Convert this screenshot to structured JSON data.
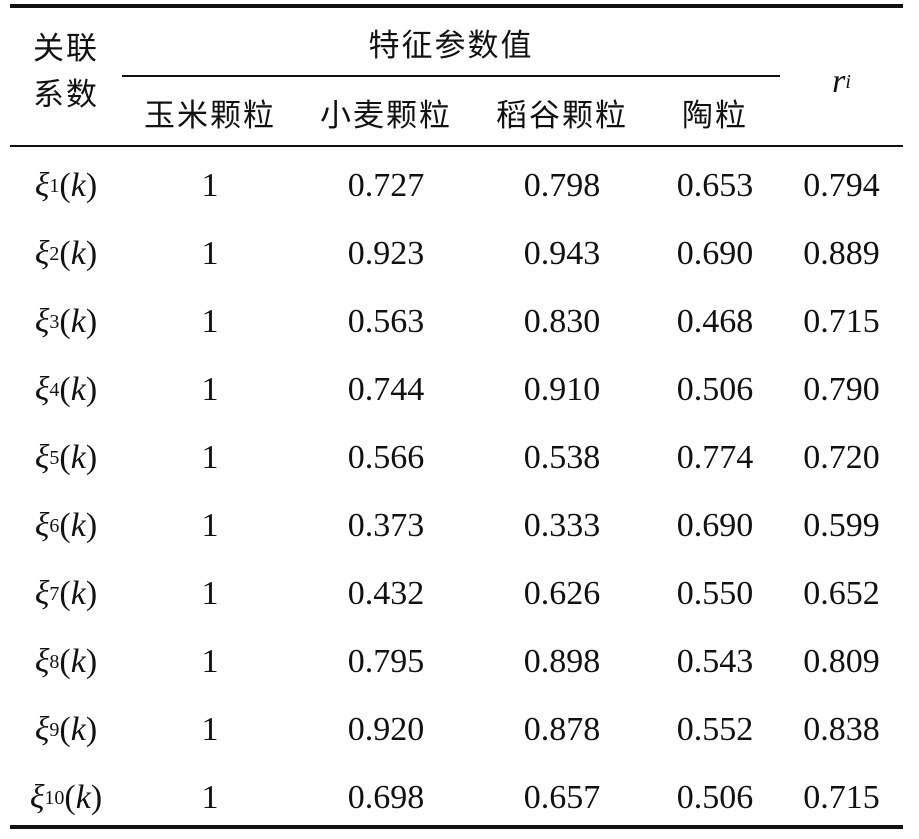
{
  "header": {
    "row_label_line1": "关联",
    "row_label_line2": "系数",
    "group_title": "特征参数值",
    "columns": [
      "玉米颗粒",
      "小麦颗粒",
      "稻谷颗粒",
      "陶粒"
    ],
    "ri_symbol": "r",
    "ri_subscript": "i"
  },
  "rows": [
    {
      "sym": "ξ",
      "sub": "1",
      "arg": "k",
      "values": [
        "1",
        "0.727",
        "0.798",
        "0.653",
        "0.794"
      ]
    },
    {
      "sym": "ξ",
      "sub": "2",
      "arg": "k",
      "values": [
        "1",
        "0.923",
        "0.943",
        "0.690",
        "0.889"
      ]
    },
    {
      "sym": "ξ",
      "sub": "3",
      "arg": "k",
      "values": [
        "1",
        "0.563",
        "0.830",
        "0.468",
        "0.715"
      ]
    },
    {
      "sym": "ξ",
      "sub": "4",
      "arg": "k",
      "values": [
        "1",
        "0.744",
        "0.910",
        "0.506",
        "0.790"
      ]
    },
    {
      "sym": "ξ",
      "sub": "5",
      "arg": "k",
      "values": [
        "1",
        "0.566",
        "0.538",
        "0.774",
        "0.720"
      ]
    },
    {
      "sym": "ξ",
      "sub": "6",
      "arg": "k",
      "values": [
        "1",
        "0.373",
        "0.333",
        "0.690",
        "0.599"
      ]
    },
    {
      "sym": "ξ",
      "sub": "7",
      "arg": "k",
      "values": [
        "1",
        "0.432",
        "0.626",
        "0.550",
        "0.652"
      ]
    },
    {
      "sym": "ξ",
      "sub": "8",
      "arg": "k",
      "values": [
        "1",
        "0.795",
        "0.898",
        "0.543",
        "0.809"
      ]
    },
    {
      "sym": "ξ",
      "sub": "9",
      "arg": "k",
      "values": [
        "1",
        "0.920",
        "0.878",
        "0.552",
        "0.838"
      ]
    },
    {
      "sym": "ξ",
      "sub": "10",
      "arg": "k",
      "values": [
        "1",
        "0.698",
        "0.657",
        "0.506",
        "0.715"
      ]
    }
  ]
}
